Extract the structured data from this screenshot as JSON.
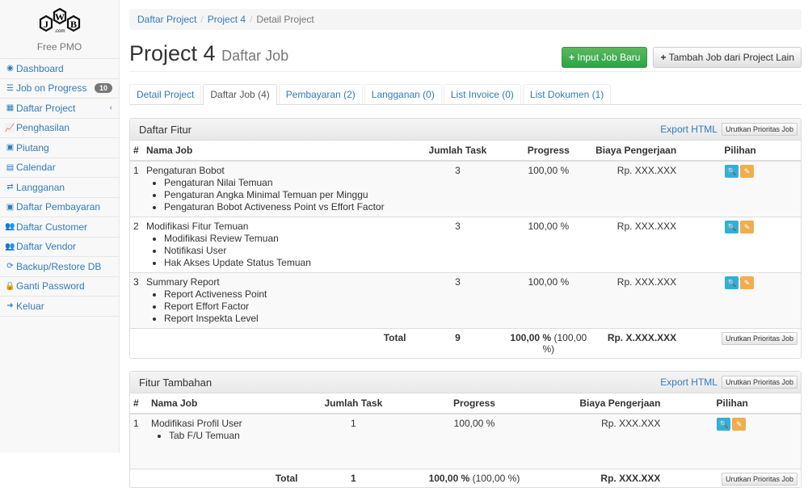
{
  "sidebar": {
    "logo_text": "JWB",
    "logo_sub": ".com",
    "app_name": "Free PMO",
    "items": [
      {
        "label": "Dashboard",
        "icon": "dashboard-icon",
        "glyph": "◉"
      },
      {
        "label": "Job on Progress",
        "icon": "list-icon",
        "glyph": "☰",
        "badge": "10"
      },
      {
        "label": "Daftar Project",
        "icon": "table-icon",
        "glyph": "▦",
        "chevron": "‹"
      },
      {
        "label": "Penghasilan",
        "icon": "line-chart-icon",
        "glyph": "📈"
      },
      {
        "label": "Piutang",
        "icon": "money-icon",
        "glyph": "▣"
      },
      {
        "label": "Calendar",
        "icon": "calendar-icon",
        "glyph": "▤"
      },
      {
        "label": "Langganan",
        "icon": "retweet-icon",
        "glyph": "⇄"
      },
      {
        "label": "Daftar Pembayaran",
        "icon": "money-icon",
        "glyph": "▣"
      },
      {
        "label": "Daftar Customer",
        "icon": "users-icon",
        "glyph": "👥"
      },
      {
        "label": "Daftar Vendor",
        "icon": "users-icon",
        "glyph": "👥"
      },
      {
        "label": "Backup/Restore DB",
        "icon": "refresh-icon",
        "glyph": "⟳"
      },
      {
        "label": "Ganti Password",
        "icon": "lock-icon",
        "glyph": "🔒"
      },
      {
        "label": "Keluar",
        "icon": "sign-out-icon",
        "glyph": "➜"
      }
    ]
  },
  "breadcrumb": [
    "Daftar Project",
    "Project 4",
    "Detail Project"
  ],
  "header": {
    "title": "Project 4",
    "subtitle": "Daftar Job",
    "btn_new": "Input Job Baru",
    "btn_add": "Tambah Job dari Project Lain"
  },
  "tabs": [
    "Detail Project",
    "Daftar Job (4)",
    "Pembayaran (2)",
    "Langganan (0)",
    "List Invoice (0)",
    "List Dokumen (1)"
  ],
  "panel1": {
    "title": "Daftar Fitur",
    "export": "Export HTML",
    "sort": "Urutkan Prioritas Job",
    "columns": [
      "#",
      "Nama Job",
      "Jumlah Task",
      "Progress",
      "Biaya Pengerjaan",
      "Pilihan"
    ],
    "rows": [
      {
        "no": "1",
        "name": "Pengaturan Bobot",
        "tasks": "3",
        "progress": "100,00 %",
        "cost": "Rp. XXX.XXX",
        "items": [
          "Pengaturan Nilai Temuan",
          "Pengaturan Angka Minimal Temuan per Minggu",
          "Pengaturan Bobot Activeness Point vs Effort Factor"
        ]
      },
      {
        "no": "2",
        "name": "Modifikasi Fitur Temuan",
        "tasks": "3",
        "progress": "100,00 %",
        "cost": "Rp. XXX.XXX",
        "items": [
          "Modifikasi Review Temuan",
          "Notifikasi User",
          "Hak Akses Update Status Temuan"
        ]
      },
      {
        "no": "3",
        "name": "Summary Report",
        "tasks": "3",
        "progress": "100,00 %",
        "cost": "Rp. XXX.XXX",
        "items": [
          "Report Activeness Point",
          "Report Effort Factor",
          "Report Inspekta Level"
        ]
      }
    ],
    "total": {
      "label": "Total",
      "tasks": "9",
      "progress": "100,00 %",
      "progress2": "(100,00 %)",
      "cost": "Rp. X.XXX.XXX"
    }
  },
  "panel2": {
    "title": "Fitur Tambahan",
    "export": "Export HTML",
    "sort": "Urutkan Prioritas Job",
    "columns": [
      "#",
      "Nama Job",
      "Jumlah Task",
      "Progress",
      "Biaya Pengerjaan",
      "Pilihan"
    ],
    "rows": [
      {
        "no": "1",
        "name": "Modifikasi Profil User",
        "tasks": "1",
        "progress": "100,00 %",
        "cost": "Rp. XXX.XXX",
        "items": [
          "Tab F/U Temuan"
        ]
      }
    ],
    "total": {
      "label": "Total",
      "tasks": "1",
      "progress": "100,00 %",
      "progress2": "(100,00 %)",
      "cost": "Rp. XXX.XXX"
    }
  }
}
